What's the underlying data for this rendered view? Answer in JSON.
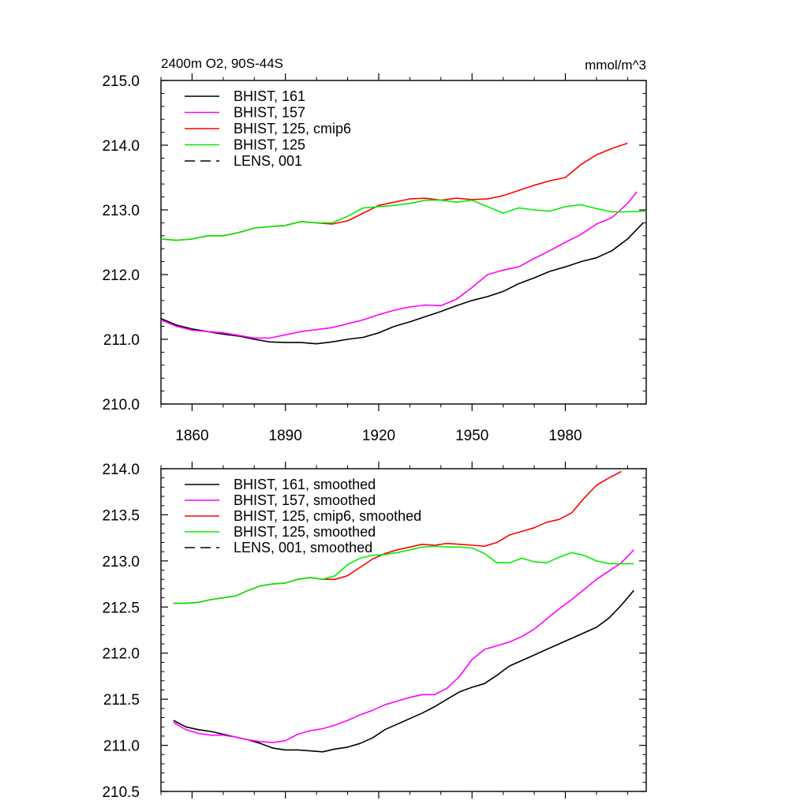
{
  "chart_data": [
    {
      "type": "line",
      "title_left": "2400m O2, 90S-44S",
      "title_right": "mmol/m^3",
      "ylim": [
        210.0,
        215.0
      ],
      "yticks": [
        "210.0",
        "211.0",
        "212.0",
        "213.0",
        "214.0",
        "215.0"
      ],
      "xlim": [
        1850,
        2006
      ],
      "xticks": [
        1860,
        1890,
        1920,
        1950,
        1980
      ],
      "x_tick_labels_shown": true,
      "legend": [
        {
          "label": "BHIST, 161",
          "color": "#000000",
          "dash": false
        },
        {
          "label": "BHIST, 157",
          "color": "#ff00ff",
          "dash": false
        },
        {
          "label": "BHIST, 125, cmip6",
          "color": "#ff0000",
          "dash": false
        },
        {
          "label": "BHIST, 125",
          "color": "#00ee00",
          "dash": false
        },
        {
          "label": "LENS, 001",
          "color": "#000000",
          "dash": true
        }
      ],
      "series": [
        {
          "name": "BHIST, 161",
          "color": "#000000",
          "x": [
            1850,
            1855,
            1860,
            1865,
            1870,
            1875,
            1880,
            1885,
            1890,
            1895,
            1900,
            1905,
            1910,
            1915,
            1920,
            1925,
            1930,
            1935,
            1940,
            1945,
            1950,
            1955,
            1960,
            1965,
            1970,
            1975,
            1980,
            1985,
            1990,
            1995,
            2000,
            2005
          ],
          "y": [
            211.32,
            211.22,
            211.16,
            211.12,
            211.08,
            211.05,
            211.0,
            210.96,
            210.95,
            210.95,
            210.93,
            210.96,
            211.0,
            211.03,
            211.1,
            211.2,
            211.27,
            211.35,
            211.43,
            211.52,
            211.6,
            211.66,
            211.74,
            211.86,
            211.95,
            212.05,
            212.12,
            212.2,
            212.26,
            212.37,
            212.55,
            212.8
          ]
        },
        {
          "name": "BHIST, 157",
          "color": "#ff00ff",
          "x": [
            1850,
            1855,
            1860,
            1865,
            1870,
            1875,
            1880,
            1885,
            1890,
            1895,
            1900,
            1905,
            1910,
            1915,
            1920,
            1925,
            1930,
            1935,
            1940,
            1945,
            1950,
            1955,
            1960,
            1965,
            1970,
            1975,
            1980,
            1985,
            1990,
            1995,
            2000,
            2003
          ],
          "y": [
            211.3,
            211.2,
            211.14,
            211.12,
            211.1,
            211.06,
            211.02,
            211.02,
            211.07,
            211.12,
            211.15,
            211.18,
            211.24,
            211.3,
            211.38,
            211.45,
            211.5,
            211.53,
            211.52,
            211.62,
            211.8,
            212.0,
            212.07,
            212.12,
            212.25,
            212.37,
            212.5,
            212.62,
            212.78,
            212.88,
            213.1,
            213.28
          ]
        },
        {
          "name": "BHIST, 125, cmip6",
          "color": "#ff0000",
          "x": [
            1850,
            1855,
            1860,
            1865,
            1870,
            1875,
            1880,
            1885,
            1890,
            1895,
            1900,
            1905,
            1910,
            1915,
            1920,
            1925,
            1930,
            1935,
            1940,
            1945,
            1950,
            1955,
            1960,
            1965,
            1970,
            1975,
            1980,
            1985,
            1990,
            1995,
            2000
          ],
          "y": [
            212.55,
            212.53,
            212.55,
            212.6,
            212.6,
            212.65,
            212.72,
            212.74,
            212.76,
            212.82,
            212.8,
            212.78,
            212.83,
            212.95,
            213.07,
            213.12,
            213.17,
            213.18,
            213.15,
            213.18,
            213.16,
            213.17,
            213.22,
            213.3,
            213.38,
            213.45,
            213.5,
            213.7,
            213.85,
            213.95,
            214.03
          ]
        },
        {
          "name": "BHIST, 125",
          "color": "#00ee00",
          "x": [
            1850,
            1855,
            1860,
            1865,
            1870,
            1875,
            1880,
            1885,
            1890,
            1895,
            1900,
            1905,
            1910,
            1915,
            1920,
            1925,
            1930,
            1935,
            1940,
            1945,
            1950,
            1955,
            1960,
            1965,
            1970,
            1975,
            1980,
            1985,
            1990,
            1995,
            2000,
            2006
          ],
          "y": [
            212.55,
            212.53,
            212.55,
            212.6,
            212.6,
            212.65,
            212.72,
            212.74,
            212.76,
            212.82,
            212.8,
            212.8,
            212.9,
            213.03,
            213.05,
            213.07,
            213.1,
            213.15,
            213.15,
            213.12,
            213.15,
            213.05,
            212.95,
            213.03,
            213.0,
            212.98,
            213.05,
            213.08,
            213.02,
            212.97,
            212.97,
            212.98
          ]
        }
      ]
    },
    {
      "type": "line",
      "ylim": [
        210.5,
        214.0
      ],
      "yticks": [
        "210.5",
        "211.0",
        "211.5",
        "212.0",
        "212.5",
        "213.0",
        "213.5",
        "214.0"
      ],
      "xlim": [
        1850,
        2006
      ],
      "xticks": [
        1860,
        1890,
        1920,
        1950,
        1980
      ],
      "x_tick_labels_shown": false,
      "legend": [
        {
          "label": "BHIST, 161, smoothed",
          "color": "#000000",
          "dash": false
        },
        {
          "label": "BHIST, 157, smoothed",
          "color": "#ff00ff",
          "dash": false
        },
        {
          "label": "BHIST, 125, cmip6, smoothed",
          "color": "#ff0000",
          "dash": false
        },
        {
          "label": "BHIST, 125, smoothed",
          "color": "#00ee00",
          "dash": false
        },
        {
          "label": "LENS, 001, smoothed",
          "color": "#000000",
          "dash": true
        }
      ],
      "series": [
        {
          "name": "BHIST, 161, smoothed",
          "color": "#000000",
          "x": [
            1854,
            1858,
            1862,
            1866,
            1870,
            1874,
            1878,
            1882,
            1886,
            1890,
            1894,
            1898,
            1902,
            1906,
            1910,
            1914,
            1918,
            1922,
            1926,
            1930,
            1934,
            1938,
            1942,
            1946,
            1950,
            1954,
            1958,
            1962,
            1966,
            1970,
            1974,
            1978,
            1982,
            1986,
            1990,
            1994,
            1998,
            2002
          ],
          "y": [
            211.27,
            211.2,
            211.17,
            211.15,
            211.12,
            211.09,
            211.06,
            211.02,
            210.97,
            210.95,
            210.95,
            210.94,
            210.93,
            210.96,
            210.98,
            211.02,
            211.08,
            211.17,
            211.23,
            211.29,
            211.35,
            211.42,
            211.5,
            211.58,
            211.63,
            211.67,
            211.76,
            211.86,
            211.92,
            211.98,
            212.04,
            212.1,
            212.16,
            212.22,
            212.28,
            212.38,
            212.52,
            212.68
          ]
        },
        {
          "name": "BHIST, 157, smoothed",
          "color": "#ff00ff",
          "x": [
            1854,
            1858,
            1862,
            1866,
            1870,
            1874,
            1878,
            1882,
            1886,
            1890,
            1894,
            1898,
            1902,
            1906,
            1910,
            1914,
            1918,
            1922,
            1926,
            1930,
            1934,
            1938,
            1942,
            1946,
            1950,
            1954,
            1958,
            1962,
            1966,
            1970,
            1974,
            1978,
            1982,
            1986,
            1990,
            1994,
            1998,
            2002
          ],
          "y": [
            211.25,
            211.17,
            211.13,
            211.11,
            211.11,
            211.09,
            211.06,
            211.04,
            211.03,
            211.05,
            211.12,
            211.16,
            211.18,
            211.22,
            211.27,
            211.33,
            211.38,
            211.44,
            211.48,
            211.52,
            211.55,
            211.55,
            211.62,
            211.75,
            211.93,
            212.04,
            212.08,
            212.12,
            212.18,
            212.26,
            212.37,
            212.48,
            212.58,
            212.69,
            212.8,
            212.89,
            212.98,
            213.12
          ]
        },
        {
          "name": "BHIST, 125, cmip6, smoothed",
          "color": "#ff0000",
          "x": [
            1854,
            1858,
            1862,
            1866,
            1870,
            1874,
            1878,
            1882,
            1886,
            1890,
            1894,
            1898,
            1902,
            1906,
            1910,
            1914,
            1918,
            1922,
            1926,
            1930,
            1934,
            1938,
            1942,
            1946,
            1950,
            1954,
            1958,
            1962,
            1966,
            1970,
            1974,
            1978,
            1982,
            1986,
            1990,
            1994,
            1998
          ],
          "y": [
            212.54,
            212.54,
            212.55,
            212.58,
            212.6,
            212.62,
            212.68,
            212.73,
            212.75,
            212.76,
            212.8,
            212.82,
            212.8,
            212.8,
            212.84,
            212.93,
            213.02,
            213.08,
            213.12,
            213.15,
            213.18,
            213.17,
            213.19,
            213.18,
            213.17,
            213.16,
            213.2,
            213.28,
            213.32,
            213.36,
            213.42,
            213.45,
            213.52,
            213.68,
            213.82,
            213.9,
            213.97
          ]
        },
        {
          "name": "BHIST, 125, smoothed",
          "color": "#00ee00",
          "x": [
            1854,
            1858,
            1862,
            1866,
            1870,
            1874,
            1878,
            1882,
            1886,
            1890,
            1894,
            1898,
            1902,
            1906,
            1910,
            1914,
            1918,
            1922,
            1926,
            1930,
            1934,
            1938,
            1942,
            1946,
            1950,
            1954,
            1958,
            1962,
            1966,
            1970,
            1974,
            1978,
            1982,
            1986,
            1990,
            1994,
            1998,
            2002
          ],
          "y": [
            212.54,
            212.54,
            212.55,
            212.58,
            212.6,
            212.62,
            212.68,
            212.73,
            212.75,
            212.76,
            212.8,
            212.82,
            212.8,
            212.84,
            212.96,
            213.03,
            213.06,
            213.07,
            213.09,
            213.12,
            213.15,
            213.16,
            213.15,
            213.15,
            213.14,
            213.08,
            212.98,
            212.98,
            213.03,
            212.99,
            212.98,
            213.04,
            213.09,
            213.06,
            213.0,
            212.97,
            212.97,
            212.97
          ]
        }
      ]
    }
  ]
}
